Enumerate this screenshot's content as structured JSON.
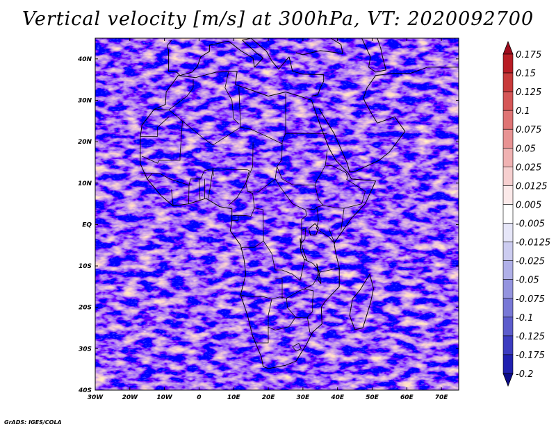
{
  "title": "Vertical velocity [m/s] at 300hPa, VT: 2020092700",
  "credit": "GrADS: IGES/COLA",
  "map": {
    "lon_range": [
      -30,
      75
    ],
    "lat_range": [
      -40,
      45
    ],
    "lon_ticks": [
      {
        "value": -30,
        "label": "30W"
      },
      {
        "value": -20,
        "label": "20W"
      },
      {
        "value": -10,
        "label": "10W"
      },
      {
        "value": 0,
        "label": "0"
      },
      {
        "value": 10,
        "label": "10E"
      },
      {
        "value": 20,
        "label": "20E"
      },
      {
        "value": 30,
        "label": "30E"
      },
      {
        "value": 40,
        "label": "40E"
      },
      {
        "value": 50,
        "label": "50E"
      },
      {
        "value": 60,
        "label": "60E"
      },
      {
        "value": 70,
        "label": "70E"
      }
    ],
    "lat_ticks": [
      {
        "value": 40,
        "label": "40N"
      },
      {
        "value": 30,
        "label": "30N"
      },
      {
        "value": 20,
        "label": "20N"
      },
      {
        "value": 10,
        "label": "10N"
      },
      {
        "value": 0,
        "label": "EQ"
      },
      {
        "value": -10,
        "label": "10S"
      },
      {
        "value": -20,
        "label": "20S"
      },
      {
        "value": -30,
        "label": "30S"
      },
      {
        "value": -40,
        "label": "40S"
      }
    ],
    "africa_outline": [
      [
        -17,
        21
      ],
      [
        -17,
        14.7
      ],
      [
        -15,
        11
      ],
      [
        -13,
        9
      ],
      [
        -11,
        7
      ],
      [
        -7.5,
        4.5
      ],
      [
        -3,
        5
      ],
      [
        2,
        6.3
      ],
      [
        6,
        4.3
      ],
      [
        9.5,
        3.8
      ],
      [
        9.5,
        1
      ],
      [
        9,
        -1.5
      ],
      [
        12,
        -5
      ],
      [
        13,
        -8.5
      ],
      [
        13.5,
        -12
      ],
      [
        12,
        -17
      ],
      [
        14,
        -22
      ],
      [
        15.5,
        -27
      ],
      [
        18,
        -32
      ],
      [
        18.5,
        -34.3
      ],
      [
        20,
        -34.8
      ],
      [
        25,
        -34
      ],
      [
        28,
        -33
      ],
      [
        31,
        -29
      ],
      [
        32.8,
        -26
      ],
      [
        35.5,
        -24
      ],
      [
        35.3,
        -20
      ],
      [
        36.5,
        -18.5
      ],
      [
        40.5,
        -15
      ],
      [
        40.5,
        -10.5
      ],
      [
        39.5,
        -7
      ],
      [
        39,
        -4.5
      ],
      [
        41.5,
        -1.5
      ],
      [
        44,
        1.5
      ],
      [
        48,
        5
      ],
      [
        51,
        10.5
      ],
      [
        44,
        11
      ],
      [
        43,
        12.5
      ],
      [
        39.5,
        15.5
      ],
      [
        37.5,
        18.5
      ],
      [
        35,
        24
      ],
      [
        33.5,
        27.5
      ],
      [
        32.5,
        30
      ],
      [
        29,
        31
      ],
      [
        25,
        32
      ],
      [
        20,
        31
      ],
      [
        15,
        32.5
      ],
      [
        10.5,
        33.8
      ],
      [
        11,
        37
      ],
      [
        5,
        36.8
      ],
      [
        -1,
        35.5
      ],
      [
        -6,
        36
      ],
      [
        -9.5,
        32
      ],
      [
        -9.7,
        29
      ],
      [
        -13,
        27.8
      ],
      [
        -16.5,
        24
      ],
      [
        -17,
        21
      ]
    ],
    "madagascar_outline": [
      [
        49.3,
        -12
      ],
      [
        50.4,
        -15.5
      ],
      [
        49.5,
        -19
      ],
      [
        47.3,
        -25
      ],
      [
        45,
        -25.4
      ],
      [
        43.5,
        -22
      ],
      [
        44.3,
        -18
      ],
      [
        46.5,
        -15.8
      ],
      [
        49.3,
        -12
      ]
    ],
    "arabia_outline": [
      [
        34.6,
        28
      ],
      [
        39,
        22
      ],
      [
        42.8,
        14.8
      ],
      [
        43.5,
        12.7
      ],
      [
        45,
        12.8
      ],
      [
        52,
        15.5
      ],
      [
        55,
        17.5
      ],
      [
        59.5,
        22.5
      ],
      [
        56.5,
        26
      ],
      [
        51.5,
        24.5
      ],
      [
        50,
        26.5
      ],
      [
        48,
        29.5
      ],
      [
        47.5,
        30.5
      ],
      [
        48.5,
        33
      ],
      [
        51,
        36
      ],
      [
        56,
        36.5
      ],
      [
        61,
        36.5
      ],
      [
        66,
        38
      ],
      [
        75,
        38
      ]
    ],
    "europe_outline": [
      [
        26,
        40.5
      ],
      [
        23,
        37.5
      ],
      [
        21,
        39.5
      ],
      [
        19.5,
        41.8
      ],
      [
        15,
        45
      ],
      [
        12.5,
        44.5
      ],
      [
        16.5,
        41.5
      ],
      [
        18.5,
        40.2
      ],
      [
        16,
        38
      ],
      [
        15.6,
        40.2
      ],
      [
        12,
        42
      ],
      [
        8.5,
        44.3
      ],
      [
        3,
        43.3
      ],
      [
        3,
        41.8
      ],
      [
        0.5,
        40.5
      ],
      [
        -0.5,
        38.2
      ],
      [
        -2,
        36.8
      ],
      [
        -5.5,
        36
      ],
      [
        -6.5,
        36.8
      ],
      [
        -8.8,
        37
      ],
      [
        -8.8,
        42
      ],
      [
        -9.2,
        43.2
      ],
      [
        -8,
        44.5
      ]
    ],
    "turkey_outline": [
      [
        26,
        40.5
      ],
      [
        27,
        37
      ],
      [
        30,
        36.3
      ],
      [
        36,
        36.2
      ],
      [
        36,
        34.6
      ],
      [
        35,
        33
      ],
      [
        34.3,
        31.3
      ],
      [
        32.5,
        31
      ]
    ],
    "black_sea_outline": [
      [
        28,
        41.5
      ],
      [
        30,
        41
      ],
      [
        35,
        42
      ],
      [
        41.5,
        41.3
      ],
      [
        41,
        43.5
      ],
      [
        38,
        45
      ]
    ],
    "caspian_outline": [
      [
        47,
        45
      ],
      [
        49.5,
        40.5
      ],
      [
        49,
        38
      ],
      [
        51,
        36.8
      ],
      [
        54,
        37.3
      ],
      [
        53,
        40.5
      ],
      [
        52.5,
        42.5
      ],
      [
        51.5,
        45
      ]
    ],
    "lake_victoria_outline": [
      [
        31.7,
        -1
      ],
      [
        33.5,
        0.2
      ],
      [
        34.5,
        -0.8
      ],
      [
        33.8,
        -2.5
      ],
      [
        32.2,
        -2.6
      ],
      [
        31.7,
        -1
      ]
    ],
    "lake_tanganyika_outline": [
      [
        29.2,
        -3.4
      ],
      [
        29.8,
        -5.5
      ],
      [
        30.6,
        -7.5
      ],
      [
        31.1,
        -8.6
      ],
      [
        30.4,
        -8.4
      ],
      [
        29.4,
        -6.5
      ],
      [
        29.2,
        -3.4
      ]
    ],
    "lake_malawi_outline": [
      [
        34,
        -9.5
      ],
      [
        34.6,
        -11.5
      ],
      [
        35.2,
        -14.3
      ],
      [
        34.4,
        -13.5
      ],
      [
        34.3,
        -11.2
      ],
      [
        34,
        -9.5
      ]
    ],
    "borders": [
      [
        [
          -13,
          27.8
        ],
        [
          -8.7,
          27.7
        ],
        [
          -3.5,
          31
        ],
        [
          -1.7,
          33
        ],
        [
          -1.7,
          35.1
        ]
      ],
      [
        [
          -8.7,
          27.7
        ],
        [
          -4.8,
          25
        ],
        [
          1,
          21
        ],
        [
          4,
          19.2
        ],
        [
          12,
          23.5
        ],
        [
          15,
          23
        ],
        [
          19,
          21.5
        ],
        [
          24,
          19.5
        ],
        [
          24,
          20
        ],
        [
          25,
          22
        ]
      ],
      [
        [
          8.5,
          36.9
        ],
        [
          7.5,
          33
        ],
        [
          9.5,
          30
        ],
        [
          10,
          25.5
        ],
        [
          11.5,
          24.3
        ]
      ],
      [
        [
          11.5,
          33.2
        ],
        [
          12,
          23.5
        ]
      ],
      [
        [
          25,
          31.6
        ],
        [
          25,
          22
        ],
        [
          36.9,
          22
        ]
      ],
      [
        [
          -17,
          21.3
        ],
        [
          -12,
          21.3
        ],
        [
          -12,
          23.5
        ],
        [
          -8.7,
          26
        ]
      ],
      [
        [
          -16.5,
          16.5
        ],
        [
          -12,
          14.8
        ],
        [
          -11.5,
          15.5
        ],
        [
          -5.5,
          15.5
        ],
        [
          -5.5,
          16.6
        ],
        [
          -4.8,
          25
        ]
      ],
      [
        [
          -11.5,
          12.4
        ],
        [
          -8.5,
          11
        ],
        [
          -5.5,
          10.2
        ],
        [
          -2.9,
          9.5
        ],
        [
          -2.5,
          11
        ],
        [
          0.5,
          11
        ],
        [
          1.5,
          13
        ],
        [
          4,
          13.5
        ],
        [
          4.2,
          11.8
        ]
      ],
      [
        [
          -17,
          12.3
        ],
        [
          -11.5,
          12.4
        ]
      ],
      [
        [
          -15,
          11
        ],
        [
          -13.5,
          12.4
        ]
      ],
      [
        [
          -8,
          8.5
        ],
        [
          -7.5,
          4.5
        ]
      ],
      [
        [
          -3,
          5
        ],
        [
          -2.9,
          9.5
        ]
      ],
      [
        [
          0.3,
          5.9
        ],
        [
          0,
          11
        ]
      ],
      [
        [
          1.6,
          6.2
        ],
        [
          1.6,
          11
        ]
      ],
      [
        [
          2.7,
          6.3
        ],
        [
          3.7,
          11.8
        ],
        [
          4,
          13.5
        ],
        [
          8.5,
          13.3
        ],
        [
          14,
          13.2
        ]
      ],
      [
        [
          8.5,
          4.6
        ],
        [
          11,
          6.5
        ],
        [
          13.5,
          10
        ],
        [
          14.5,
          13
        ],
        [
          14,
          13.2
        ]
      ],
      [
        [
          15.6,
          19.8
        ],
        [
          15.5,
          14
        ],
        [
          13.5,
          10
        ],
        [
          14,
          8
        ],
        [
          15.5,
          7.5
        ],
        [
          16,
          4
        ],
        [
          15,
          2
        ],
        [
          13,
          2.2
        ],
        [
          11.3,
          2.2
        ],
        [
          9.8,
          2.2
        ]
      ],
      [
        [
          11.3,
          2.2
        ],
        [
          11.3,
          1
        ],
        [
          9.3,
          1
        ]
      ],
      [
        [
          14,
          8
        ],
        [
          17,
          7.8
        ],
        [
          22,
          11
        ],
        [
          23.5,
          9
        ],
        [
          27,
          5
        ],
        [
          30.8,
          3.5
        ],
        [
          31,
          2.2
        ],
        [
          29.6,
          1.2
        ],
        [
          29.6,
          -4.5
        ]
      ],
      [
        [
          22,
          11
        ],
        [
          22.5,
          14
        ],
        [
          23.9,
          15.7
        ],
        [
          24,
          19.5
        ]
      ],
      [
        [
          22.5,
          14
        ],
        [
          24,
          11
        ],
        [
          27,
          9.6
        ],
        [
          33.5,
          9.5
        ],
        [
          34,
          10.7
        ],
        [
          35,
          12
        ],
        [
          36.5,
          14.3
        ],
        [
          37,
          17.8
        ]
      ],
      [
        [
          16,
          4
        ],
        [
          18.5,
          3.6
        ],
        [
          18.6,
          -4
        ],
        [
          16,
          -5.5
        ],
        [
          12.5,
          -5.5
        ],
        [
          12,
          -6
        ]
      ],
      [
        [
          18.6,
          -4
        ],
        [
          21,
          -7
        ],
        [
          22,
          -11
        ],
        [
          24,
          -11
        ],
        [
          27,
          -12
        ],
        [
          29.2,
          -13.5
        ],
        [
          30.5,
          -8.5
        ]
      ],
      [
        [
          33.5,
          9.5
        ],
        [
          34.5,
          6
        ],
        [
          35.9,
          4.6
        ],
        [
          34,
          4.2
        ],
        [
          33.3,
          3.6
        ],
        [
          31,
          3.8
        ]
      ],
      [
        [
          35.9,
          4.6
        ],
        [
          40,
          4
        ],
        [
          41.9,
          3.9
        ],
        [
          41,
          -1.5
        ]
      ],
      [
        [
          34,
          4.2
        ],
        [
          34.5,
          1
        ],
        [
          33.9,
          -1
        ]
      ],
      [
        [
          36.5,
          14.3
        ],
        [
          38.5,
          14.2
        ],
        [
          42.5,
          12.5
        ],
        [
          43,
          11
        ]
      ],
      [
        [
          42.5,
          11
        ],
        [
          48,
          8
        ],
        [
          47,
          5
        ],
        [
          41.9,
          3.9
        ]
      ],
      [
        [
          37.5,
          -1
        ],
        [
          39.2,
          -4.6
        ]
      ],
      [
        [
          29.6,
          -4.5
        ],
        [
          30.6,
          -3.4
        ],
        [
          30.8,
          -1
        ],
        [
          29.6,
          -1.4
        ]
      ],
      [
        [
          33.8,
          -1
        ],
        [
          37.5,
          -3
        ],
        [
          39.2,
          -4.6
        ]
      ],
      [
        [
          30.5,
          -8.5
        ],
        [
          32.9,
          -9.4
        ],
        [
          35,
          -11.5
        ],
        [
          40.5,
          -10.5
        ]
      ],
      [
        [
          12,
          -17
        ],
        [
          13.5,
          -17.3
        ],
        [
          18.5,
          -17.4
        ],
        [
          21,
          -18
        ],
        [
          23.3,
          -17.5
        ],
        [
          25.3,
          -17.8
        ],
        [
          29,
          -16
        ],
        [
          30.4,
          -15.6
        ],
        [
          33,
          -14.4
        ],
        [
          35,
          -11.5
        ]
      ],
      [
        [
          22,
          -13
        ],
        [
          24,
          -13
        ],
        [
          24,
          -18
        ]
      ],
      [
        [
          21,
          -18
        ],
        [
          20,
          -22
        ],
        [
          20,
          -24.8
        ],
        [
          20,
          -28.6
        ],
        [
          16.5,
          -28.6
        ]
      ],
      [
        [
          25.3,
          -17.8
        ],
        [
          25.5,
          -20
        ],
        [
          28,
          -22.5
        ],
        [
          31.3,
          -22.4
        ],
        [
          32.8,
          -21
        ],
        [
          32.8,
          -18.5
        ],
        [
          33,
          -16
        ],
        [
          30.4,
          -15.6
        ]
      ],
      [
        [
          20,
          -24.8
        ],
        [
          22,
          -25.5
        ],
        [
          26,
          -24.7
        ],
        [
          27.8,
          -22.5
        ]
      ],
      [
        [
          31.3,
          -22.4
        ],
        [
          32,
          -26
        ],
        [
          32.8,
          -26.8
        ]
      ],
      [
        [
          27,
          -29.5
        ],
        [
          28.8,
          -28.7
        ],
        [
          29.5,
          -30
        ],
        [
          28,
          -30.6
        ],
        [
          27,
          -29.5
        ]
      ]
    ]
  },
  "colorbar": {
    "labels": [
      "0.175",
      "0.15",
      "0.125",
      "0.1",
      "0.075",
      "0.05",
      "0.025",
      "0.0125",
      "0.005",
      "-0.005",
      "-0.0125",
      "-0.025",
      "-0.05",
      "-0.075",
      "-0.1",
      "-0.125",
      "-0.175",
      "-0.2"
    ],
    "colors": [
      "#9e0c1c",
      "#b81c24",
      "#c83a3a",
      "#d55656",
      "#df7474",
      "#e89393",
      "#f0b2b2",
      "#f6cfcf",
      "#fbe9e9",
      "#ffffff",
      "#e6e6f8",
      "#ccccf0",
      "#b0b0e8",
      "#9494df",
      "#7878d6",
      "#5c5ccc",
      "#3c3cc0",
      "#2020b0",
      "#0c0c8c"
    ]
  }
}
